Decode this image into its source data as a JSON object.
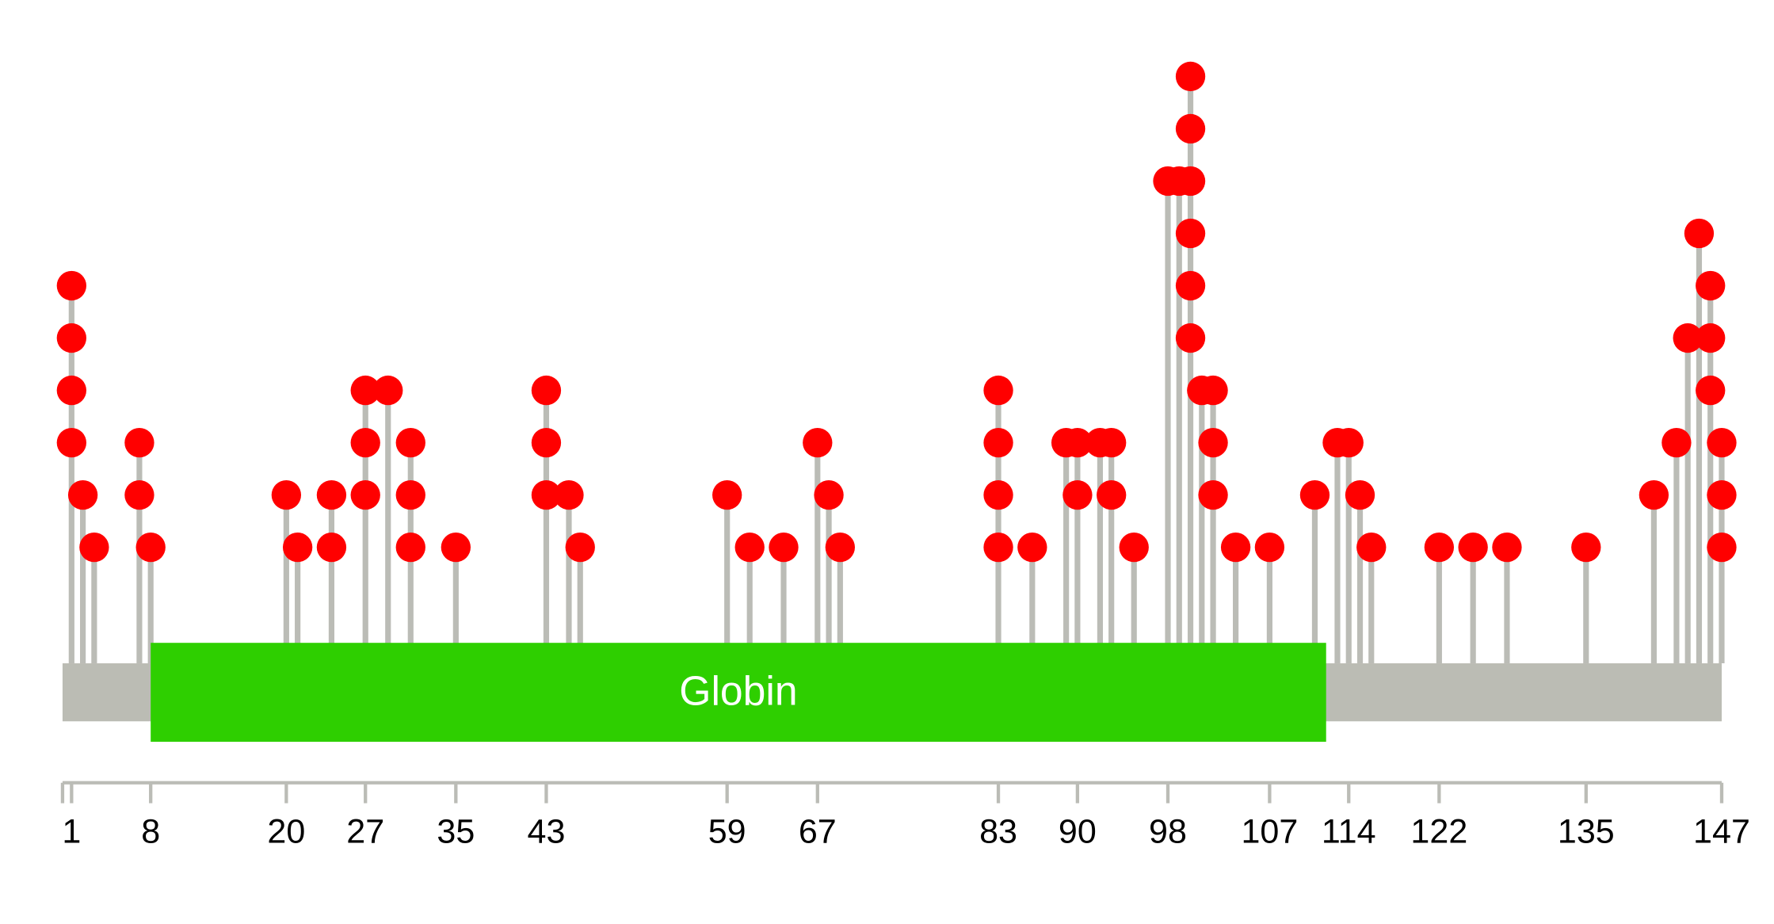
{
  "chart_data": {
    "type": "lollipop",
    "domain": {
      "label": "Globin",
      "start": 8,
      "end": 112,
      "color": "#2ecf00"
    },
    "xlim": [
      0,
      147
    ],
    "xticks": [
      1,
      8,
      20,
      27,
      35,
      43,
      59,
      67,
      83,
      90,
      98,
      107,
      114,
      122,
      135,
      147
    ],
    "dot_color": "#ff0000",
    "stem_color": "#bbbcb6",
    "lollipops": [
      {
        "pos": 1,
        "dots": [
          3,
          4,
          5,
          6
        ]
      },
      {
        "pos": 2,
        "dots": [
          2
        ]
      },
      {
        "pos": 3,
        "dots": [
          1
        ]
      },
      {
        "pos": 7,
        "dots": [
          2,
          3
        ]
      },
      {
        "pos": 8,
        "dots": [
          1
        ]
      },
      {
        "pos": 20,
        "dots": [
          2
        ]
      },
      {
        "pos": 21,
        "dots": [
          1
        ]
      },
      {
        "pos": 24,
        "dots": [
          1,
          2
        ]
      },
      {
        "pos": 27,
        "dots": [
          2,
          3,
          4
        ]
      },
      {
        "pos": 29,
        "dots": [
          4
        ]
      },
      {
        "pos": 31,
        "dots": [
          1,
          2,
          3
        ]
      },
      {
        "pos": 35,
        "dots": [
          1
        ]
      },
      {
        "pos": 43,
        "dots": [
          2,
          3,
          4
        ]
      },
      {
        "pos": 45,
        "dots": [
          2
        ]
      },
      {
        "pos": 46,
        "dots": [
          1
        ]
      },
      {
        "pos": 59,
        "dots": [
          2
        ]
      },
      {
        "pos": 61,
        "dots": [
          1
        ]
      },
      {
        "pos": 64,
        "dots": [
          1
        ]
      },
      {
        "pos": 67,
        "dots": [
          3
        ]
      },
      {
        "pos": 68,
        "dots": [
          2
        ]
      },
      {
        "pos": 69,
        "dots": [
          1
        ]
      },
      {
        "pos": 83,
        "dots": [
          1,
          2,
          3,
          4
        ]
      },
      {
        "pos": 86,
        "dots": [
          1
        ]
      },
      {
        "pos": 89,
        "dots": [
          3
        ]
      },
      {
        "pos": 90,
        "dots": [
          2,
          3
        ]
      },
      {
        "pos": 92,
        "dots": [
          3
        ]
      },
      {
        "pos": 93,
        "dots": [
          2,
          3
        ]
      },
      {
        "pos": 95,
        "dots": [
          1
        ]
      },
      {
        "pos": 98,
        "dots": [
          8
        ]
      },
      {
        "pos": 99,
        "dots": [
          8
        ]
      },
      {
        "pos": 100,
        "dots": [
          5,
          6,
          7,
          8,
          9,
          10
        ]
      },
      {
        "pos": 101,
        "dots": [
          4
        ]
      },
      {
        "pos": 102,
        "dots": [
          2,
          3,
          4
        ]
      },
      {
        "pos": 104,
        "dots": [
          1
        ]
      },
      {
        "pos": 107,
        "dots": [
          1
        ]
      },
      {
        "pos": 111,
        "dots": [
          2
        ]
      },
      {
        "pos": 113,
        "dots": [
          3
        ]
      },
      {
        "pos": 114,
        "dots": [
          3
        ]
      },
      {
        "pos": 115,
        "dots": [
          2
        ]
      },
      {
        "pos": 116,
        "dots": [
          1
        ]
      },
      {
        "pos": 122,
        "dots": [
          1
        ]
      },
      {
        "pos": 125,
        "dots": [
          1
        ]
      },
      {
        "pos": 128,
        "dots": [
          1
        ]
      },
      {
        "pos": 135,
        "dots": [
          1
        ]
      },
      {
        "pos": 141,
        "dots": [
          2
        ]
      },
      {
        "pos": 143,
        "dots": [
          3
        ]
      },
      {
        "pos": 144,
        "dots": [
          5
        ]
      },
      {
        "pos": 145,
        "dots": [
          7
        ]
      },
      {
        "pos": 146,
        "dots": [
          4,
          5,
          6
        ]
      },
      {
        "pos": 147,
        "dots": [
          1,
          2,
          3
        ]
      }
    ]
  }
}
